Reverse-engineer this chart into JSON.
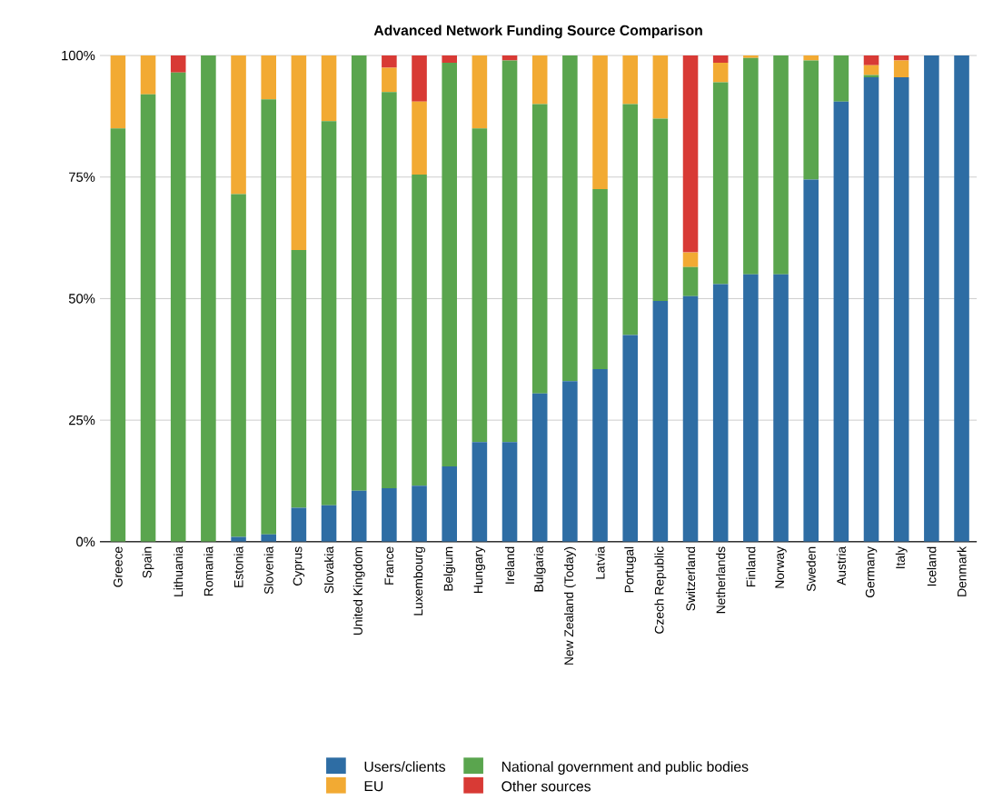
{
  "chart_data": {
    "type": "bar",
    "title": "Advanced Network Funding Source Comparison",
    "stacked": true,
    "categories": [
      "Greece",
      "Spain",
      "Lithuania",
      "Romania",
      "Estonia",
      "Slovenia",
      "Cyprus",
      "Slovakia",
      "United Kingdom",
      "France",
      "Luxembourg",
      "Belgium",
      "Hungary",
      "Ireland",
      "Bulgaria",
      "New Zealand (Today)",
      "Latvia",
      "Portugal",
      "Czech Republic",
      "Switzerland",
      "Netherlands",
      "Finland",
      "Norway",
      "Sweden",
      "Austria",
      "Germany",
      "Italy",
      "Iceland",
      "Denmark"
    ],
    "series": [
      {
        "name": "Users/clients",
        "color": "#2e6da4",
        "values": [
          0,
          0,
          0,
          0,
          1,
          1.5,
          7,
          7.5,
          10.5,
          11,
          11.5,
          15.5,
          20.5,
          20.5,
          30.5,
          33,
          35.5,
          42.5,
          49.5,
          50.5,
          53,
          55,
          55,
          74.5,
          90.5,
          95.5,
          95.5,
          100,
          100
        ]
      },
      {
        "name": "National government and public bodies",
        "color": "#5aa54e",
        "values": [
          85,
          92,
          96.5,
          100,
          70.5,
          89.5,
          53,
          79,
          89.5,
          81.5,
          64,
          83,
          64.5,
          78.5,
          59.5,
          67,
          37,
          47.5,
          37.5,
          6,
          41.5,
          44.5,
          45,
          24.5,
          9.5,
          0.5,
          0,
          0,
          0
        ]
      },
      {
        "name": "EU",
        "color": "#f2aa33",
        "values": [
          15,
          8,
          0,
          0,
          28.5,
          9,
          40,
          13.5,
          0,
          5,
          15,
          0,
          15,
          0,
          10,
          0,
          27.5,
          10,
          13,
          3,
          4,
          0.5,
          0,
          1,
          0,
          2,
          3.5,
          0,
          0
        ]
      },
      {
        "name": "Other sources",
        "color": "#d83a35",
        "values": [
          0,
          0,
          3.5,
          0,
          0,
          0,
          0,
          0,
          0,
          2.5,
          9.5,
          1.5,
          0,
          1,
          0,
          0,
          0,
          0,
          0,
          40.5,
          1.5,
          0,
          0,
          0,
          0,
          2,
          1,
          0,
          0
        ]
      }
    ],
    "ylim": [
      0,
      100
    ],
    "yticks": [
      {
        "value": 0,
        "label": "0%"
      },
      {
        "value": 25,
        "label": "25%"
      },
      {
        "value": 50,
        "label": "50%"
      },
      {
        "value": 75,
        "label": "75%"
      },
      {
        "value": 100,
        "label": "100%"
      }
    ],
    "grid": "y",
    "legend": "bottom"
  }
}
